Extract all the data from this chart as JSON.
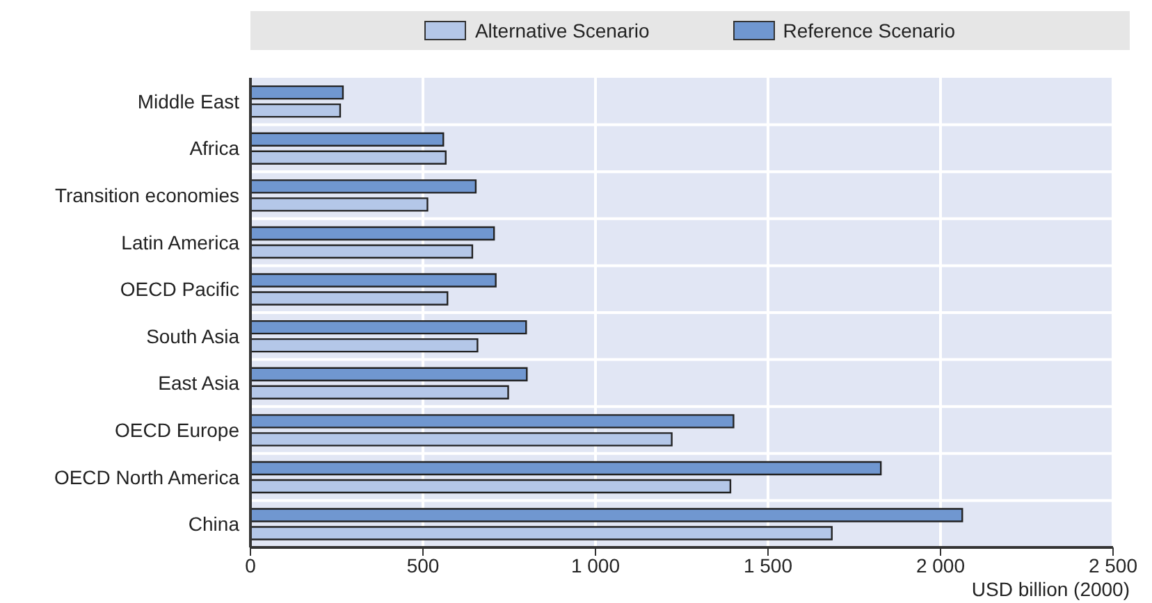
{
  "chart_data": {
    "type": "bar",
    "orientation": "horizontal",
    "xlabel": "USD billion (2000)",
    "categories": [
      "Middle East",
      "Africa",
      "Transition economies",
      "Latin America",
      "OECD Pacific",
      "South Asia",
      "East Asia",
      "OECD Europe",
      "OECD North America",
      "China"
    ],
    "series": [
      {
        "name": "Alternative Scenario",
        "color": "#b4c7e8",
        "values": [
          260,
          566,
          513,
          643,
          571,
          658,
          747,
          1221,
          1391,
          1685
        ]
      },
      {
        "name": "Reference Scenario",
        "color": "#7097d0",
        "values": [
          268,
          559,
          653,
          706,
          711,
          799,
          801,
          1400,
          1827,
          2063
        ]
      }
    ],
    "xlim": [
      0,
      2500
    ],
    "xticks": [
      0,
      500,
      {
        "value": 1000,
        "label": "1 000"
      },
      {
        "value": 1500,
        "label": "1 500"
      },
      {
        "value": 2000,
        "label": "2 000"
      },
      {
        "value": 2500,
        "label": "2 500"
      }
    ],
    "grid": true,
    "legend": "top"
  }
}
